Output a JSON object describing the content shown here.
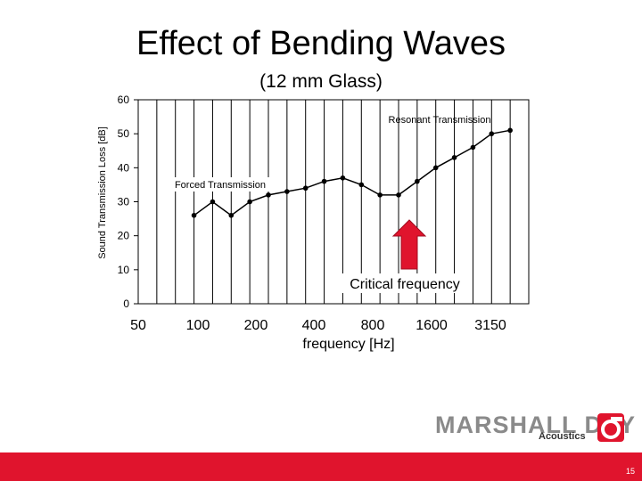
{
  "slide": {
    "title": "Effect of Bending Waves",
    "subtitle": "(12 mm Glass)",
    "page_number": "15"
  },
  "logo": {
    "name": "MARSHALL DAY",
    "sub": "Acoustics"
  },
  "chart_data": {
    "type": "line",
    "title": "",
    "xlabel": "frequency [Hz]",
    "ylabel": "Sound Transmission Loss [dB]",
    "ylim": [
      0,
      60
    ],
    "yticks": [
      0,
      10,
      20,
      30,
      40,
      50,
      60
    ],
    "xtick_labels": [
      "50",
      "100",
      "200",
      "400",
      "800",
      "1600",
      "3150"
    ],
    "x": [
      "100",
      "125",
      "160",
      "200",
      "250",
      "315",
      "400",
      "500",
      "630",
      "800",
      "1000",
      "1250",
      "1600",
      "2000",
      "2500",
      "3150",
      "4000",
      "5000"
    ],
    "series": [
      {
        "values": [
          26,
          30,
          26,
          30,
          32,
          33,
          34,
          36,
          37,
          35,
          32,
          32,
          36,
          40,
          43,
          46,
          50,
          51
        ]
      }
    ],
    "grid": "vertical",
    "annotations": [
      {
        "text": "Resonant Transmission"
      },
      {
        "text": "Forced Transmission"
      },
      {
        "text": "Critical frequency"
      }
    ],
    "colors": {
      "line": "#000000",
      "arrow": "#e0142d",
      "grid": "#000000"
    }
  }
}
